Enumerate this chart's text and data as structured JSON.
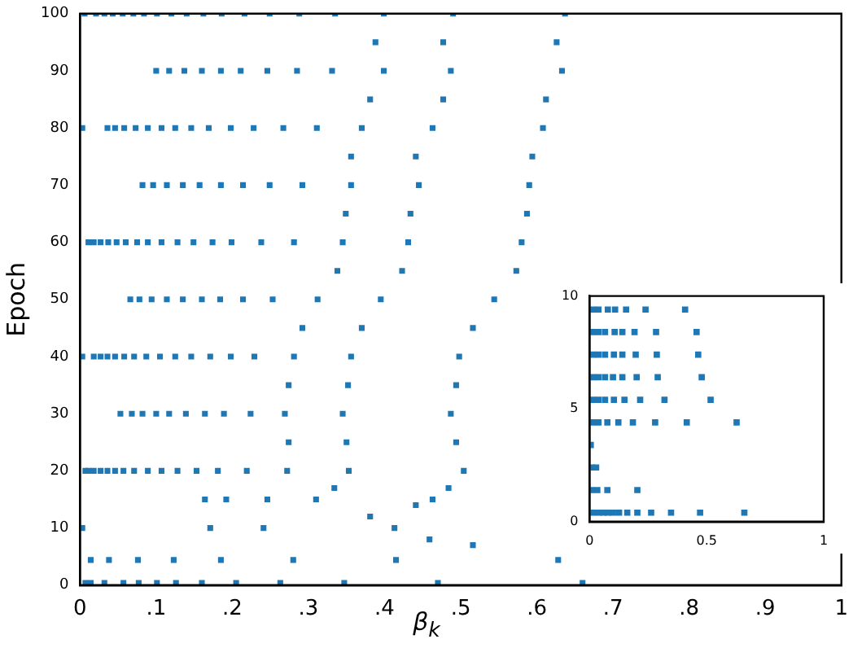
{
  "chart_data": [
    {
      "type": "scatter",
      "xlabel": "β$_{k}$",
      "ylabel": "Epoch",
      "xlim": [
        0,
        1
      ],
      "ylim": [
        0,
        100
      ],
      "xticks": [
        0,
        {
          "value": 0.1,
          "label": ".1"
        },
        {
          "value": 0.2,
          "label": ".2"
        },
        {
          "value": 0.3,
          "label": ".3"
        },
        {
          "value": 0.4,
          "label": ".4"
        },
        {
          "value": 0.5,
          "label": ".5"
        },
        {
          "value": 0.6,
          "label": ".6"
        },
        {
          "value": 0.7,
          "label": ".7"
        },
        {
          "value": 0.8,
          "label": ".8"
        },
        {
          "value": 0.9,
          "label": ".9"
        },
        1
      ],
      "yticks": [
        0,
        10,
        20,
        30,
        40,
        50,
        60,
        70,
        80,
        90,
        100
      ],
      "grid": false,
      "legend": false,
      "marker": "square",
      "series": [
        {
          "color": "#1f77b4",
          "x": [
            0.637,
            0.626,
            0.633,
            0.612,
            0.608,
            0.594,
            0.59,
            0.587,
            0.58,
            0.573,
            0.544,
            0.516,
            0.498,
            0.494,
            0.487,
            0.494,
            0.504,
            0.484,
            0.463,
            0.441
          ],
          "values": [
            100,
            95,
            90,
            85,
            80,
            75,
            70,
            65,
            60,
            55,
            50,
            45,
            40,
            35,
            30,
            25,
            20,
            17,
            15,
            14
          ]
        },
        {
          "color": "#1f77b4",
          "x": [
            0.49,
            0.477,
            0.487,
            0.477,
            0.463,
            0.441,
            0.445,
            0.434,
            0.431,
            0.423,
            0.395,
            0.37,
            0.356,
            0.352,
            0.345,
            0.35,
            0.353,
            0.334,
            0.31
          ],
          "values": [
            100,
            95,
            90,
            85,
            80,
            75,
            70,
            65,
            60,
            55,
            50,
            45,
            40,
            35,
            30,
            25,
            20,
            17,
            15
          ]
        },
        {
          "color": "#1f77b4",
          "x": [
            0.399,
            0.388,
            0.399,
            0.381,
            0.37,
            0.356,
            0.356,
            0.349,
            0.345,
            0.338,
            0.312,
            0.292,
            0.281,
            0.274,
            0.269,
            0.274,
            0.272,
            0.246
          ],
          "values": [
            100,
            95,
            90,
            85,
            80,
            75,
            70,
            65,
            60,
            55,
            50,
            45,
            40,
            35,
            30,
            25,
            20,
            15
          ]
        },
        {
          "color": "#1f77b4",
          "x": [
            0.335,
            0.331,
            0.311,
            0.292,
            0.281,
            0.253,
            0.229,
            0.224,
            0.219,
            0.192
          ],
          "values": [
            100,
            90,
            80,
            70,
            60,
            50,
            40,
            30,
            20,
            15
          ]
        },
        {
          "color": "#1f77b4",
          "x": [
            0.288,
            0.285,
            0.267,
            0.249,
            0.238,
            0.214,
            0.198,
            0.189,
            0.181,
            0.164
          ],
          "values": [
            100,
            90,
            80,
            70,
            60,
            50,
            40,
            30,
            20,
            15
          ]
        },
        {
          "color": "#1f77b4",
          "x": [
            0.249,
            0.246,
            0.228,
            0.214,
            0.199,
            0.184,
            0.171,
            0.164,
            0.153
          ],
          "values": [
            100,
            90,
            80,
            70,
            60,
            50,
            40,
            30,
            20
          ]
        },
        {
          "color": "#1f77b4",
          "x": [
            0.216,
            0.211,
            0.198,
            0.185,
            0.174,
            0.16,
            0.146,
            0.139,
            0.128
          ],
          "values": [
            100,
            90,
            80,
            70,
            60,
            50,
            40,
            30,
            20
          ]
        },
        {
          "color": "#1f77b4",
          "x": [
            0.186,
            0.185,
            0.169,
            0.157,
            0.149,
            0.135,
            0.125,
            0.117,
            0.107
          ],
          "values": [
            100,
            90,
            80,
            70,
            60,
            50,
            40,
            30,
            20
          ]
        },
        {
          "color": "#1f77b4",
          "x": [
            0.162,
            0.16,
            0.146,
            0.135,
            0.128,
            0.114,
            0.105,
            0.1,
            0.089
          ],
          "values": [
            100,
            90,
            80,
            70,
            60,
            50,
            40,
            30,
            20
          ]
        },
        {
          "color": "#1f77b4",
          "x": [
            0.14,
            0.137,
            0.125,
            0.114,
            0.107,
            0.094,
            0.087,
            0.082,
            0.071
          ],
          "values": [
            100,
            90,
            80,
            70,
            60,
            50,
            40,
            30,
            20
          ]
        },
        {
          "color": "#1f77b4",
          "x": [
            0.12,
            0.117,
            0.107,
            0.096,
            0.089,
            0.078,
            0.071,
            0.068,
            0.057
          ],
          "values": [
            100,
            90,
            80,
            70,
            60,
            50,
            40,
            30,
            20
          ]
        },
        {
          "color": "#1f77b4",
          "x": [
            0.101,
            0.1,
            0.089,
            0.082,
            0.075,
            0.066,
            0.058,
            0.053,
            0.046
          ],
          "values": [
            100,
            90,
            80,
            70,
            60,
            50,
            40,
            30,
            20
          ]
        },
        {
          "color": "#1f77b4",
          "x": [
            0.084,
            0.073,
            0.06,
            0.046,
            0.036
          ],
          "values": [
            100,
            80,
            60,
            40,
            20
          ]
        },
        {
          "color": "#1f77b4",
          "x": [
            0.07,
            0.058,
            0.048,
            0.036,
            0.027
          ],
          "values": [
            100,
            80,
            60,
            40,
            20
          ]
        },
        {
          "color": "#1f77b4",
          "x": [
            0.056,
            0.046,
            0.037,
            0.027,
            0.018
          ],
          "values": [
            100,
            80,
            60,
            40,
            20
          ]
        },
        {
          "color": "#1f77b4",
          "x": [
            0.043,
            0.036,
            0.027,
            0.018,
            0.011
          ],
          "values": [
            100,
            80,
            60,
            40,
            20
          ]
        },
        {
          "color": "#1f77b4",
          "x": [
            0.032,
            0.018,
            0.007
          ],
          "values": [
            100,
            60,
            20
          ]
        },
        {
          "color": "#1f77b4",
          "x": [
            0.021,
            0.011,
            0.006,
            0.003,
            0.003,
            0.003
          ],
          "values": [
            100,
            60,
            100,
            80,
            40,
            10
          ]
        },
        {
          "color": "#1f77b4",
          "x": [
            0.007,
            0.014,
            0.032,
            0.057,
            0.077,
            0.101,
            0.126,
            0.16,
            0.205,
            0.263,
            0.347,
            0.47,
            0.66
          ],
          "values": [
            0.4,
            0.4,
            0.4,
            0.4,
            0.4,
            0.4,
            0.4,
            0.4,
            0.4,
            0.4,
            0.4,
            0.4,
            0.4
          ]
        },
        {
          "color": "#1f77b4",
          "x": [
            0.628,
            0.415,
            0.28,
            0.185,
            0.123,
            0.076,
            0.038,
            0.014
          ],
          "values": [
            4.4,
            4.4,
            4.4,
            4.4,
            4.4,
            4.4,
            4.4,
            4.4
          ]
        },
        {
          "color": "#1f77b4",
          "x": [
            0.381,
            0.413,
            0.241,
            0.171,
            0.459,
            0.516
          ],
          "values": [
            12,
            10,
            10,
            10,
            8,
            7
          ]
        }
      ]
    },
    {
      "type": "scatter",
      "xlim": [
        0,
        1
      ],
      "ylim": [
        0,
        10
      ],
      "xticks": [
        0,
        0.5,
        1
      ],
      "yticks": [
        0,
        5,
        10
      ],
      "grid": false,
      "legend": false,
      "marker": "square",
      "series": [
        {
          "color": "#1f77b4",
          "x": [
            0.014,
            0.038,
            0.059,
            0.078,
            0.1,
            0.126,
            0.161,
            0.204,
            0.263,
            0.348,
            0.472,
            0.661
          ],
          "values": [
            0.4,
            0.4,
            0.4,
            0.4,
            0.4,
            0.4,
            0.4,
            0.4,
            0.4,
            0.4,
            0.4,
            0.4
          ]
        },
        {
          "color": "#1f77b4",
          "x": [
            0.009,
            0.033,
            0.076,
            0.204
          ],
          "values": [
            1.4,
            1.4,
            1.4,
            1.4
          ]
        },
        {
          "color": "#1f77b4",
          "x": [
            0.009,
            0.028
          ],
          "values": [
            2.4,
            2.4
          ]
        },
        {
          "color": "#1f77b4",
          "x": [
            0.005
          ],
          "values": [
            3.4
          ]
        },
        {
          "color": "#1f77b4",
          "x": [
            0.014,
            0.038,
            0.076,
            0.123,
            0.185,
            0.28,
            0.415,
            0.628
          ],
          "values": [
            4.4,
            4.4,
            4.4,
            4.4,
            4.4,
            4.4,
            4.4,
            4.4
          ]
        },
        {
          "color": "#1f77b4",
          "x": [
            0.014,
            0.038,
            0.066,
            0.104,
            0.149,
            0.216,
            0.32,
            0.517
          ],
          "values": [
            5.4,
            5.4,
            5.4,
            5.4,
            5.4,
            5.4,
            5.4,
            5.4
          ]
        },
        {
          "color": "#1f77b4",
          "x": [
            0.014,
            0.038,
            0.066,
            0.1,
            0.14,
            0.201,
            0.291,
            0.479
          ],
          "values": [
            6.4,
            6.4,
            6.4,
            6.4,
            6.4,
            6.4,
            6.4,
            6.4
          ]
        },
        {
          "color": "#1f77b4",
          "x": [
            0.014,
            0.038,
            0.066,
            0.104,
            0.14,
            0.197,
            0.287,
            0.464
          ],
          "values": [
            7.4,
            7.4,
            7.4,
            7.4,
            7.4,
            7.4,
            7.4,
            7.4
          ]
        },
        {
          "color": "#1f77b4",
          "x": [
            0.014,
            0.038,
            0.066,
            0.107,
            0.14,
            0.192,
            0.284,
            0.457
          ],
          "values": [
            8.4,
            8.4,
            8.4,
            8.4,
            8.4,
            8.4,
            8.4,
            8.4
          ]
        },
        {
          "color": "#1f77b4",
          "x": [
            0.014,
            0.038,
            0.078,
            0.109,
            0.156,
            0.239,
            0.408
          ],
          "values": [
            9.4,
            9.4,
            9.4,
            9.4,
            9.4,
            9.4,
            9.4
          ]
        }
      ]
    }
  ]
}
